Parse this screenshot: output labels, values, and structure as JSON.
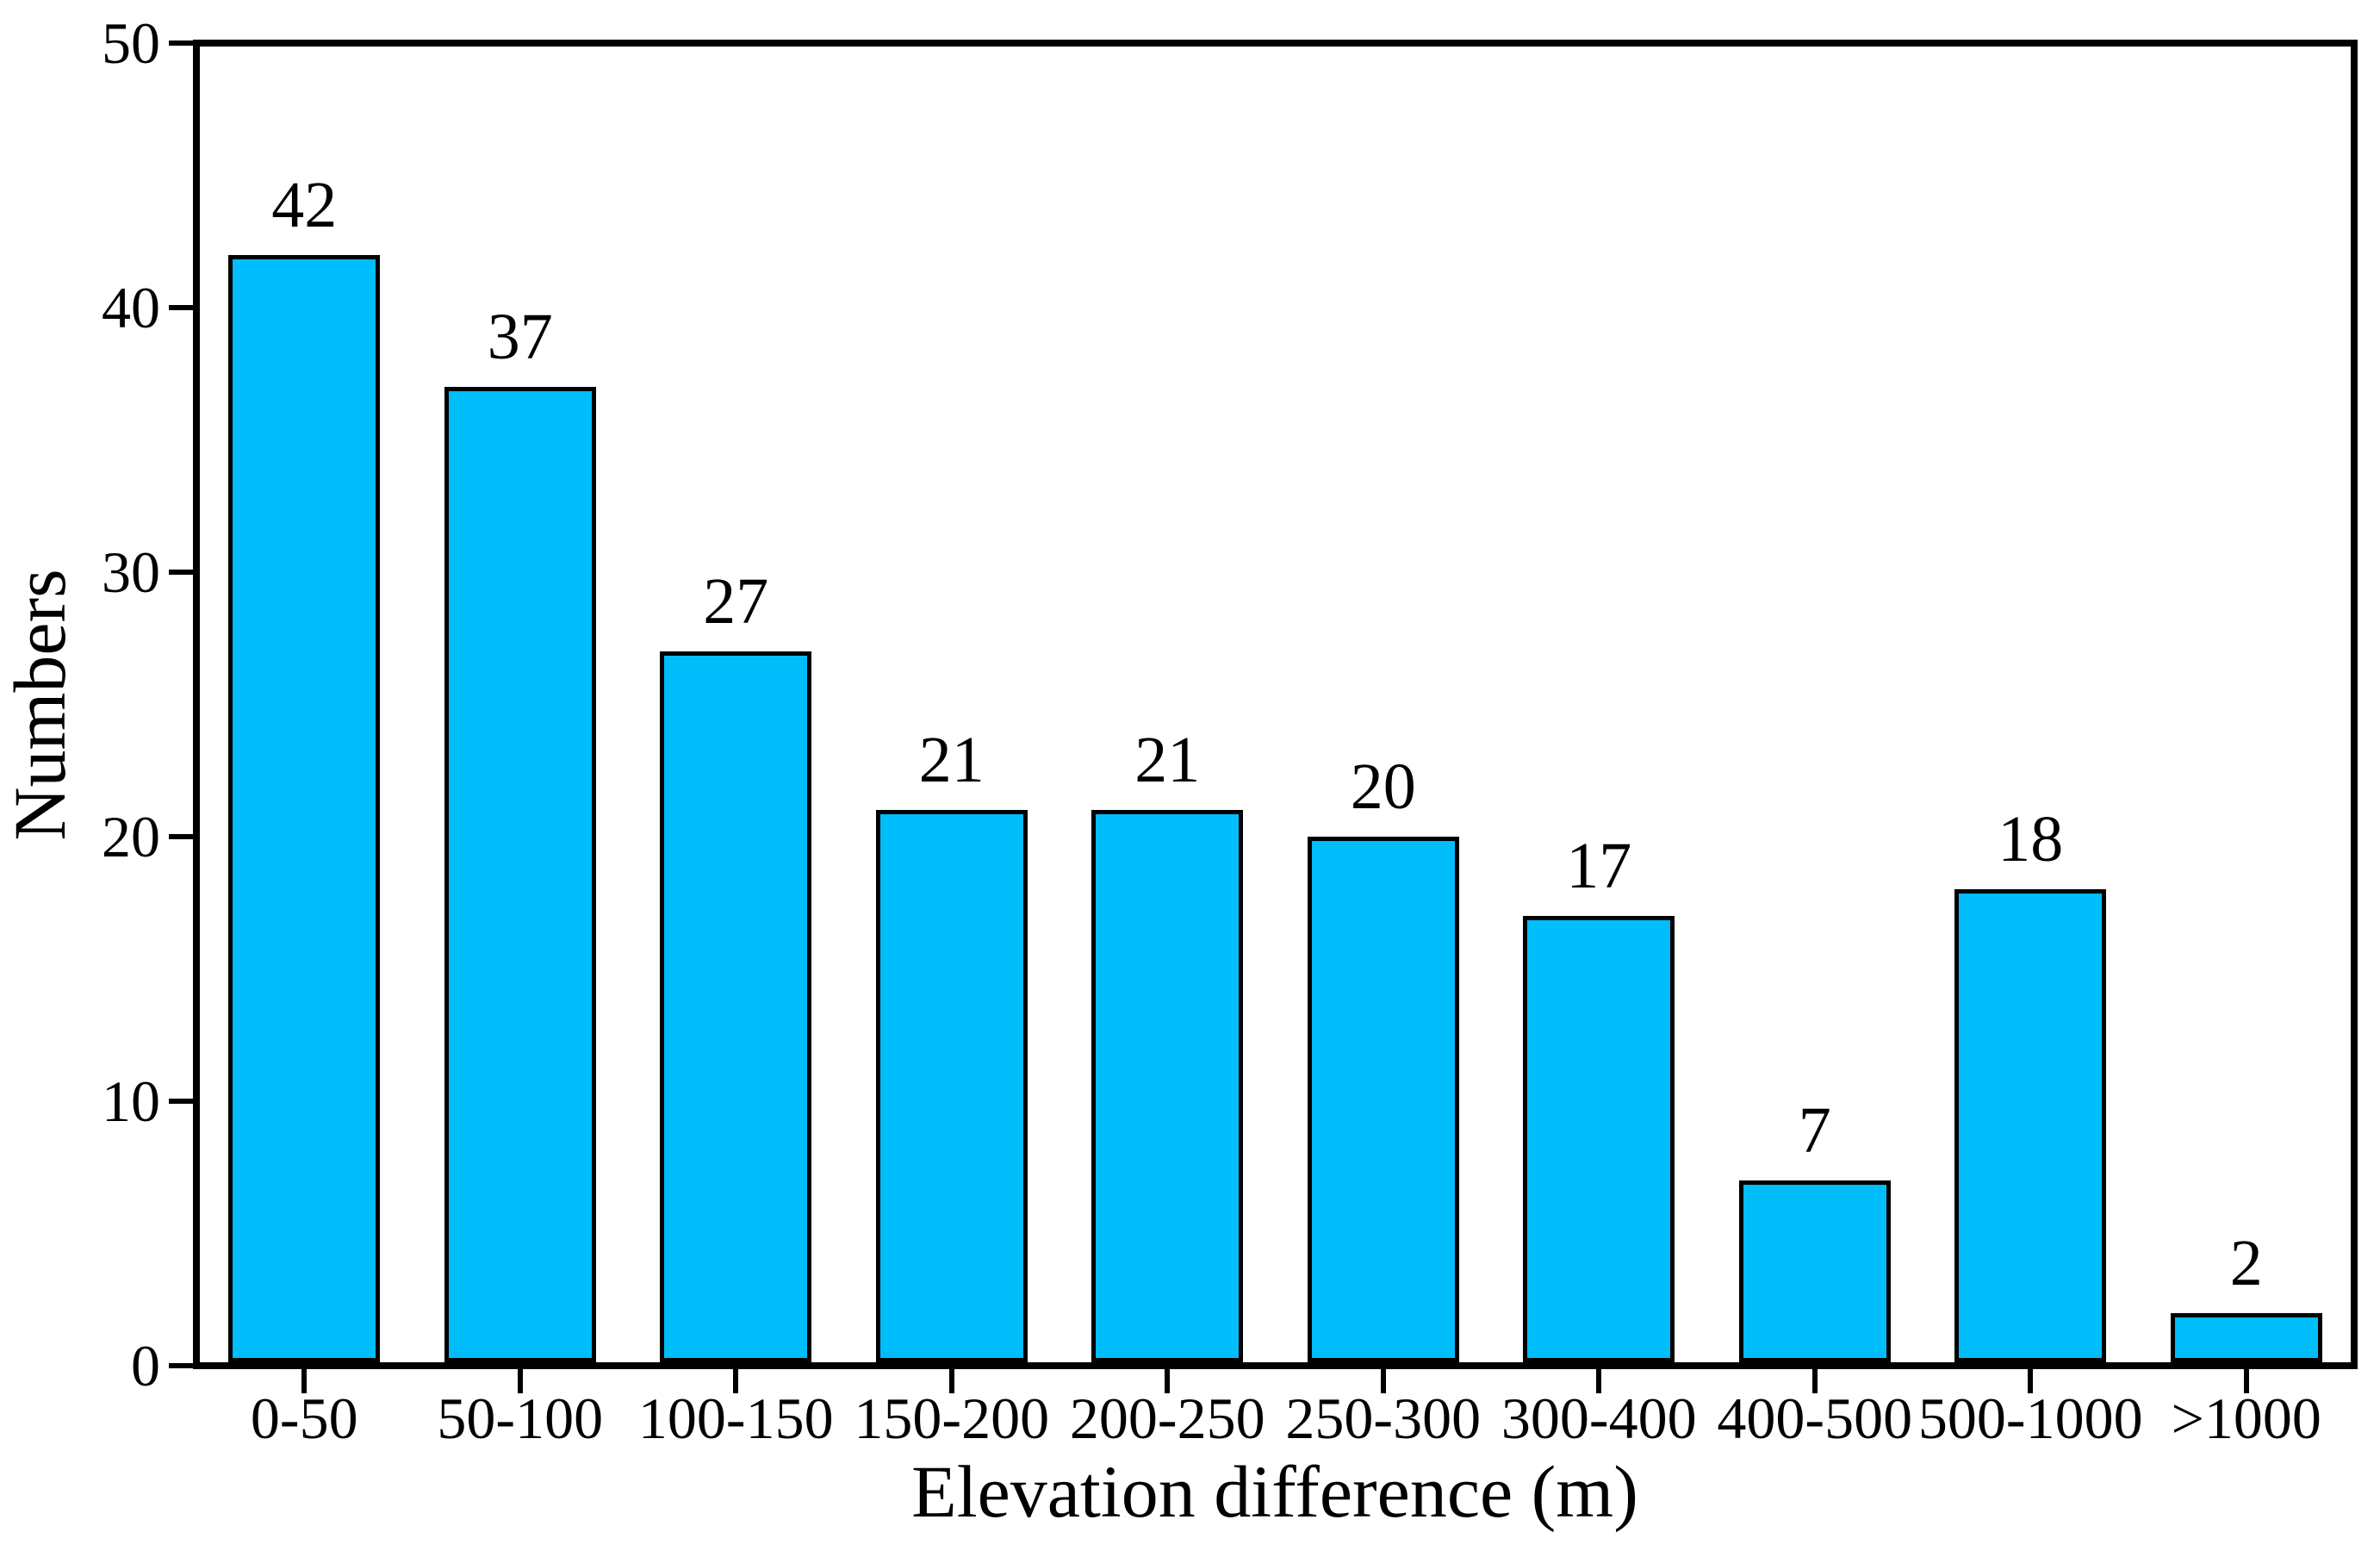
{
  "chart_data": {
    "type": "bar",
    "categories": [
      "0-50",
      "50-100",
      "100-150",
      "150-200",
      "200-250",
      "250-300",
      "300-400",
      "400-500",
      "500-1000",
      ">1000"
    ],
    "values": [
      42,
      37,
      27,
      21,
      21,
      20,
      17,
      7,
      18,
      2
    ],
    "value_labels": [
      "42",
      "37",
      "27",
      "21",
      "21",
      "20",
      "17",
      "7",
      "18",
      "2"
    ],
    "title": "",
    "xlabel": "Elevation difference (m)",
    "ylabel": "Numbers",
    "ylim": [
      0,
      50
    ],
    "yticks": [
      0,
      10,
      20,
      30,
      40,
      50
    ],
    "ytick_labels": [
      "0",
      "10",
      "20",
      "30",
      "40",
      "50"
    ],
    "grid": false,
    "legend": null,
    "bar_color": "#00BDFC",
    "bar_outline_color": "#000000",
    "axis_color": "#000000",
    "background_color": "#ffffff"
  }
}
